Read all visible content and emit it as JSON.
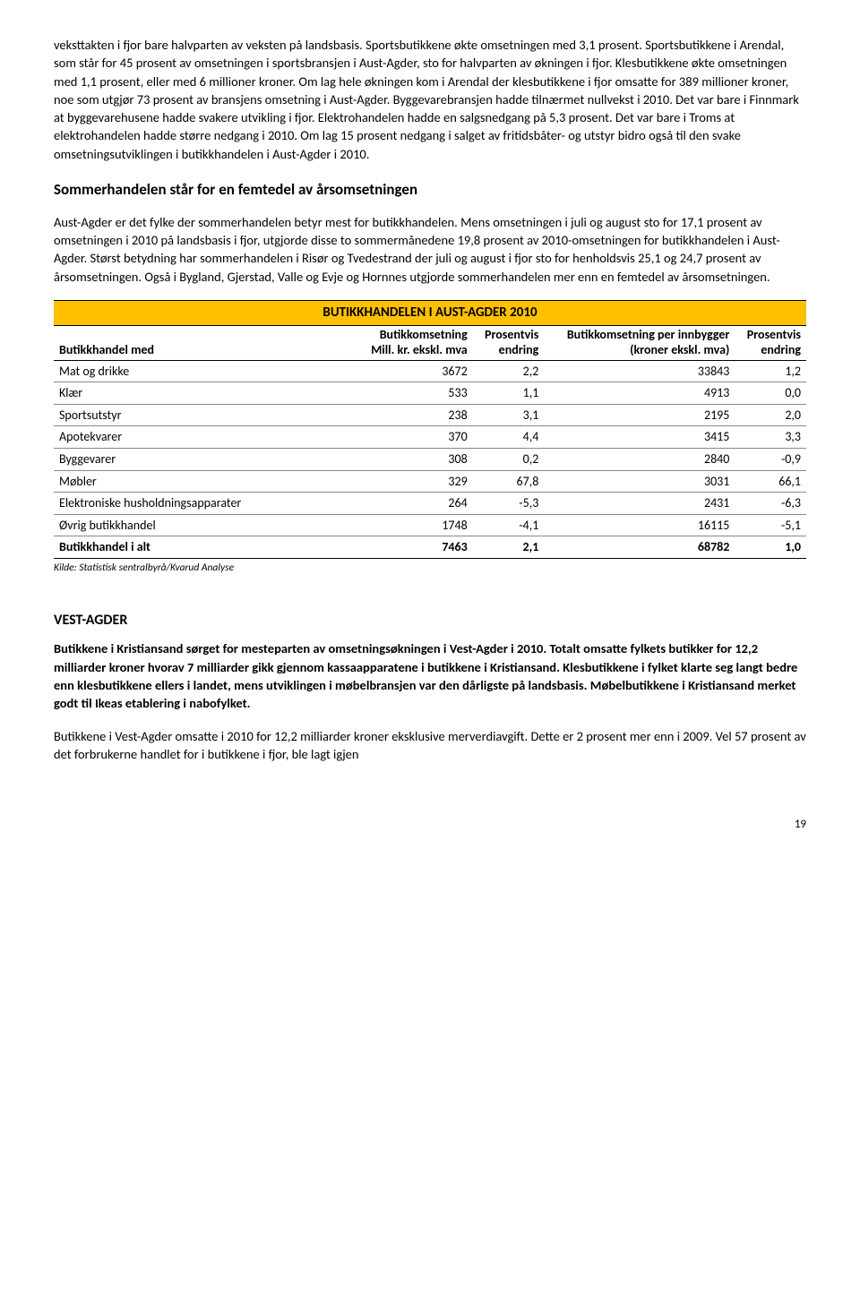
{
  "para1": "veksttakten i fjor bare halvparten av veksten på landsbasis. Sportsbutikkene økte omsetningen med 3,1 prosent. Sportsbutikkene i Arendal, som står for 45 prosent av omsetningen i sportsbransjen i Aust-Agder, sto for halvparten av økningen i fjor. Klesbutikkene økte omsetningen med 1,1 prosent, eller med 6 millioner kroner. Om lag hele økningen kom i Arendal der klesbutikkene i fjor omsatte for 389 millioner kroner, noe som utgjør 73 prosent av bransjens omsetning i Aust-Agder. Byggevarebransjen hadde tilnærmet nullvekst i 2010. Det var bare i Finnmark at byggevarehusene hadde svakere utvikling i fjor.  Elektrohandelen hadde en salgsnedgang på 5,3 prosent. Det var bare i Troms at elektrohandelen hadde større nedgang i 2010. Om lag 15 prosent nedgang i salget av fritidsbåter- og utstyr bidro også til den svake omsetningsutviklingen i butikkhandelen i Aust-Agder i 2010.",
  "heading1": "Sommerhandelen står for en femtedel av årsomsetningen",
  "para2": "Aust-Agder er det fylke der sommerhandelen betyr mest for butikkhandelen. Mens omsetningen i juli og august sto for 17,1 prosent av omsetningen i 2010 på landsbasis i fjor, utgjorde disse to sommermånedene 19,8 prosent av 2010-omsetningen for butikkhandelen i Aust-Agder.  Størst betydning har sommerhandelen i Risør og Tvedestrand der juli og august i fjor sto for henholdsvis 25,1 og 24,7 prosent av årsomsetningen. Også i Bygland, Gjerstad, Valle og Evje og Hornnes utgjorde sommerhandelen mer enn en femtedel av årsomsetningen.",
  "table": {
    "title": "BUTIKKHANDELEN I AUST-AGDER 2010",
    "title_bg": "#ffc000",
    "headers": {
      "c1a": "",
      "c1b": "Butikkhandel med",
      "c2a": "Butikkomsetning",
      "c2b": "Mill. kr. ekskl. mva",
      "c3a": "Prosentvis",
      "c3b": "endring",
      "c4a": "Butikkomsetning per innbygger",
      "c4b": "(kroner ekskl. mva)",
      "c5a": "Prosentvis",
      "c5b": "endring"
    },
    "rows": [
      {
        "label": "Mat og drikke",
        "v1": "3672",
        "v2": "2,2",
        "v3": "33843",
        "v4": "1,2"
      },
      {
        "label": "Klær",
        "v1": "533",
        "v2": "1,1",
        "v3": "4913",
        "v4": "0,0"
      },
      {
        "label": "Sportsutstyr",
        "v1": "238",
        "v2": "3,1",
        "v3": "2195",
        "v4": "2,0"
      },
      {
        "label": "Apotekvarer",
        "v1": "370",
        "v2": "4,4",
        "v3": "3415",
        "v4": "3,3"
      },
      {
        "label": "Byggevarer",
        "v1": "308",
        "v2": "0,2",
        "v3": "2840",
        "v4": "-0,9"
      },
      {
        "label": "Møbler",
        "v1": "329",
        "v2": "67,8",
        "v3": "3031",
        "v4": "66,1"
      },
      {
        "label": "Elektroniske husholdningsapparater",
        "v1": "264",
        "v2": "-5,3",
        "v3": "2431",
        "v4": "-6,3"
      },
      {
        "label": "Øvrig butikkhandel",
        "v1": "1748",
        "v2": "-4,1",
        "v3": "16115",
        "v4": "-5,1"
      },
      {
        "label": "Butikkhandel i alt",
        "v1": "7463",
        "v2": "2,1",
        "v3": "68782",
        "v4": "1,0"
      }
    ],
    "source": "Kilde: Statistisk sentralbyrå/Kvarud Analyse"
  },
  "section2_title": "VEST-AGDER",
  "para3": "Butikkene i Kristiansand sørget for mesteparten av omsetningsøkningen i Vest-Agder i 2010. Totalt omsatte fylkets butikker for 12,2 milliarder kroner hvorav 7 milliarder gikk gjennom kassaapparatene i butikkene i Kristiansand. Klesbutikkene i fylket klarte seg langt bedre enn klesbutikkene ellers i landet, mens utviklingen i møbelbransjen var den dårligste på landsbasis. Møbelbutikkene i Kristiansand merket godt til Ikeas etablering i nabofylket.",
  "para4": "Butikkene i Vest-Agder omsatte i 2010 for 12,2 milliarder kroner eksklusive merverdiavgift. Dette er 2 prosent mer enn i 2009. Vel 57 prosent av det forbrukerne handlet for i butikkene i fjor, ble lagt igjen",
  "pagenum": "19"
}
